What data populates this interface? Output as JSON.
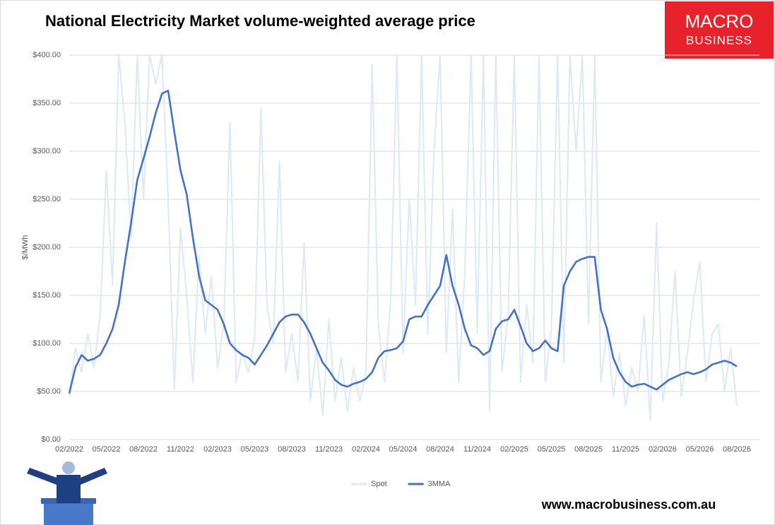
{
  "chart_data": {
    "type": "line",
    "title": "National Electricity Market volume-weighted average price",
    "y_label": "$/MWh",
    "categories": [
      "02/2022",
      null,
      null,
      null,
      null,
      null,
      "05/2022",
      null,
      null,
      null,
      null,
      null,
      "08/2022",
      null,
      null,
      null,
      null,
      null,
      "11/2022",
      null,
      null,
      null,
      null,
      null,
      "02/2023",
      null,
      null,
      null,
      null,
      null,
      "05/2023",
      null,
      null,
      null,
      null,
      null,
      "08/2023",
      null,
      null,
      null,
      null,
      null,
      "11/2023",
      null,
      null,
      null,
      null,
      null,
      "02/2024",
      null,
      null,
      null,
      null,
      null,
      "05/2024",
      null,
      null,
      null,
      null,
      null,
      "08/2024",
      null,
      null,
      null,
      null,
      null,
      "11/2024",
      null,
      null,
      null,
      null,
      null,
      "02/2025",
      null,
      null,
      null,
      null,
      null,
      "05/2025",
      null,
      null,
      null,
      null,
      null,
      "08/2025",
      null,
      null,
      null,
      null,
      null,
      "11/2025",
      null,
      null,
      null,
      null,
      null,
      "02/2026",
      null,
      null,
      null,
      null,
      null,
      "05/2026",
      null,
      null,
      null,
      null,
      null,
      "08/2026"
    ],
    "series": [
      {
        "name": "Spot",
        "color": "#dce9f6",
        "values": [
          45,
          95,
          70,
          110,
          75,
          130,
          280,
          160,
          400,
          330,
          210,
          400,
          250,
          400,
          370,
          400,
          250,
          52,
          220,
          150,
          60,
          190,
          110,
          170,
          75,
          120,
          330,
          60,
          90,
          70,
          105,
          345,
          140,
          100,
          290,
          70,
          110,
          60,
          205,
          40,
          95,
          25,
          125,
          40,
          85,
          30,
          75,
          40,
          70,
          390,
          120,
          60,
          145,
          400,
          90,
          250,
          140,
          400,
          110,
          300,
          400,
          90,
          240,
          60,
          175,
          400,
          110,
          400,
          30,
          400,
          70,
          130,
          400,
          60,
          140,
          80,
          400,
          60,
          115,
          400,
          80,
          400,
          300,
          400,
          120,
          400,
          60,
          115,
          45,
          90,
          35,
          75,
          50,
          130,
          20,
          225,
          40,
          80,
          175,
          45,
          90,
          145,
          185,
          60,
          110,
          120,
          50,
          95,
          35
        ]
      },
      {
        "name": "3MMA",
        "color": "#4472c4",
        "values": [
          48,
          75,
          88,
          82,
          84,
          88,
          100,
          115,
          140,
          185,
          225,
          270,
          292,
          315,
          340,
          360,
          363,
          320,
          280,
          255,
          210,
          170,
          145,
          140,
          135,
          120,
          100,
          93,
          88,
          85,
          78,
          88,
          98,
          110,
          122,
          128,
          130,
          130,
          122,
          110,
          95,
          80,
          72,
          62,
          57,
          55,
          58,
          60,
          63,
          70,
          85,
          92,
          93,
          95,
          102,
          125,
          128,
          128,
          140,
          150,
          160,
          192,
          160,
          140,
          115,
          98,
          95,
          88,
          92,
          115,
          123,
          125,
          135,
          118,
          100,
          92,
          95,
          103,
          95,
          92,
          160,
          175,
          185,
          188,
          190,
          190,
          135,
          115,
          85,
          70,
          60,
          55,
          57,
          58,
          55,
          52,
          57,
          62,
          65,
          68,
          70,
          68,
          70,
          73,
          78,
          80,
          82,
          80,
          76
        ]
      }
    ],
    "ylim": [
      0,
      400
    ],
    "yticks": [
      {
        "value": 0,
        "label": "$0.00"
      },
      {
        "value": 50,
        "label": "$50.00"
      },
      {
        "value": 100,
        "label": "$100.00"
      },
      {
        "value": 150,
        "label": "$150.00"
      },
      {
        "value": 200,
        "label": "$200.00"
      },
      {
        "value": 250,
        "label": "$250.00"
      },
      {
        "value": 300,
        "label": "$300.00"
      },
      {
        "value": 350,
        "label": "$350.00"
      },
      {
        "value": 400,
        "label": "$400.00"
      }
    ],
    "grid": true,
    "legend": "bottom"
  },
  "logo": {
    "line1": "MACRO",
    "line2": "BUSINESS"
  },
  "footer": "www.macrobusiness.com.au"
}
